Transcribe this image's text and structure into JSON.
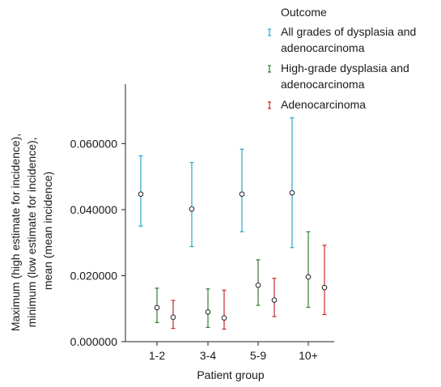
{
  "chart_data": {
    "type": "errorbar",
    "title": "",
    "xlabel": "Patient group",
    "ylabel_lines": [
      "Maximum (high estimate for incidence),",
      "minimum (low estimate for incidence),",
      "mean (mean incidence)"
    ],
    "categories": [
      "1-2",
      "3-4",
      "5-9",
      "10+"
    ],
    "ylim": [
      0,
      0.078
    ],
    "yticks": [
      0.0,
      0.02,
      0.04,
      0.06
    ],
    "ytick_labels": [
      "0.000000",
      "0.020000",
      "0.040000",
      "0.060000"
    ],
    "grid": false,
    "legend": {
      "title": "Outcome",
      "position": "top-right"
    },
    "series": [
      {
        "name_lines": [
          "All grades of dysplasia and",
          "adenocarcinoma"
        ],
        "color": "#2aa3c9",
        "mean": [
          0.0447,
          0.0402,
          0.0447,
          0.0451
        ],
        "min": [
          0.035,
          0.0288,
          0.0333,
          0.0285
        ],
        "max": [
          0.0563,
          0.0543,
          0.0583,
          0.0678
        ]
      },
      {
        "name_lines": [
          "High-grade dysplasia and",
          "adenocarcinoma"
        ],
        "color": "#2e7d32",
        "mean": [
          0.0103,
          0.009,
          0.0171,
          0.0196
        ],
        "min": [
          0.0058,
          0.0043,
          0.011,
          0.0104
        ],
        "max": [
          0.0162,
          0.016,
          0.0248,
          0.0333
        ]
      },
      {
        "name_lines": [
          "Adenocarcinoma"
        ],
        "color": "#c62828",
        "mean": [
          0.0074,
          0.0072,
          0.0126,
          0.0164
        ],
        "min": [
          0.004,
          0.0038,
          0.0076,
          0.0082
        ],
        "max": [
          0.0125,
          0.0156,
          0.0192,
          0.0292
        ]
      }
    ]
  }
}
